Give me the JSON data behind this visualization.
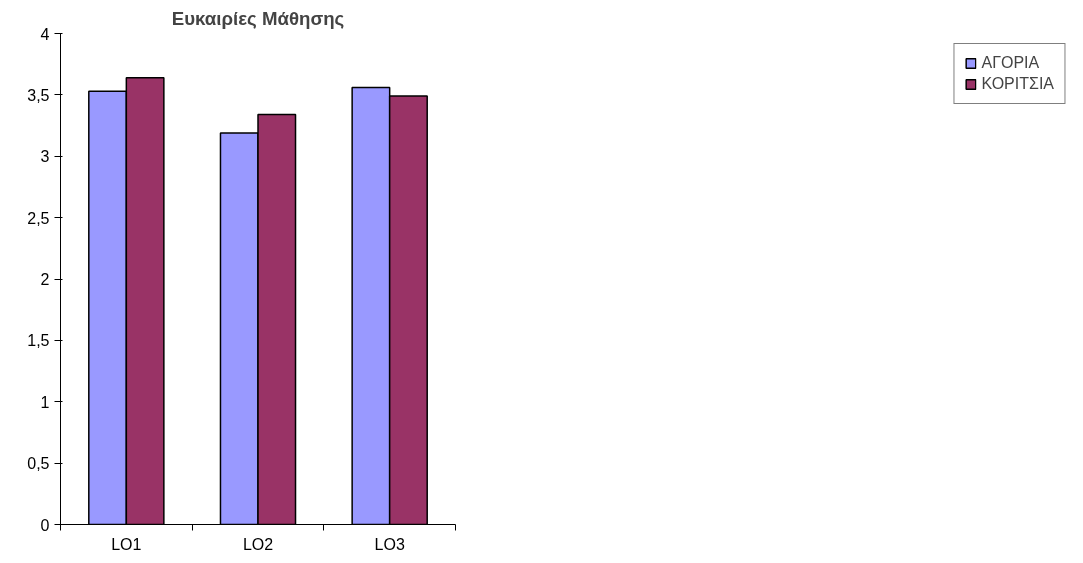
{
  "chart_data": {
    "type": "bar",
    "title": "Ευκαιρίες Μάθησης",
    "categories": [
      "LO1",
      "LO2",
      "LO3"
    ],
    "series": [
      {
        "name": "ΑΓΟΡΙΑ",
        "color": "#9999ff",
        "values": [
          3.53,
          3.19,
          3.56
        ]
      },
      {
        "name": "ΚΟΡΙΤΣΙΑ",
        "color": "#993366",
        "values": [
          3.64,
          3.34,
          3.49
        ]
      }
    ],
    "ylim": [
      0,
      4
    ],
    "yticks": [
      0,
      {
        "value": 0.5,
        "label": "0,5"
      },
      1,
      {
        "value": 1.5,
        "label": "1,5"
      },
      2,
      {
        "value": 2.5,
        "label": "2,5"
      },
      3,
      {
        "value": 3.5,
        "label": "3,5"
      },
      4
    ],
    "grid": false,
    "legend": "right"
  }
}
